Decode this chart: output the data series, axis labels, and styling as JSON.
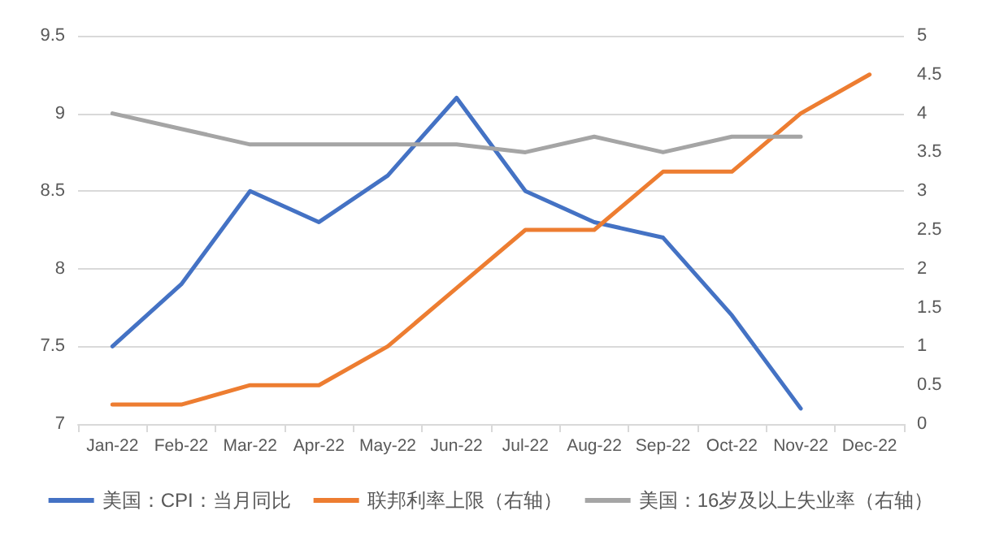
{
  "chart_data": {
    "type": "line",
    "categories": [
      "Jan-22",
      "Feb-22",
      "Mar-22",
      "Apr-22",
      "May-22",
      "Jun-22",
      "Jul-22",
      "Aug-22",
      "Sep-22",
      "Oct-22",
      "Nov-22",
      "Dec-22"
    ],
    "series": [
      {
        "name": "美国：CPI：当月同比",
        "color": "#4472c4",
        "values": [
          7.5,
          7.9,
          8.5,
          8.3,
          8.6,
          9.1,
          8.5,
          8.3,
          8.2,
          7.7,
          7.1,
          null
        ]
      },
      {
        "name": "联邦利率上限（右轴）",
        "color": "#ed7d31",
        "axis": "y2",
        "values": [
          0.25,
          0.25,
          0.5,
          0.5,
          1,
          1.75,
          2.5,
          2.5,
          3.25,
          3.25,
          4,
          4.5
        ]
      },
      {
        "name": "美国：16岁及以上失业率（右轴）",
        "color": "#a5a5a5",
        "axis": "y2",
        "values": [
          4.0,
          3.8,
          3.6,
          3.6,
          3.6,
          3.6,
          3.5,
          3.7,
          3.5,
          3.7,
          3.7,
          null
        ]
      }
    ],
    "ylim": [
      7,
      9.5
    ],
    "yticks": [
      7,
      7.5,
      8,
      8.5,
      9,
      9.5
    ],
    "y2lim": [
      0,
      5
    ],
    "y2ticks": [
      0,
      0.5,
      1,
      1.5,
      2,
      2.5,
      3,
      3.5,
      4,
      4.5,
      5
    ],
    "grid": "y",
    "legend": "bottom",
    "marker": "none",
    "line_style": "solid"
  }
}
